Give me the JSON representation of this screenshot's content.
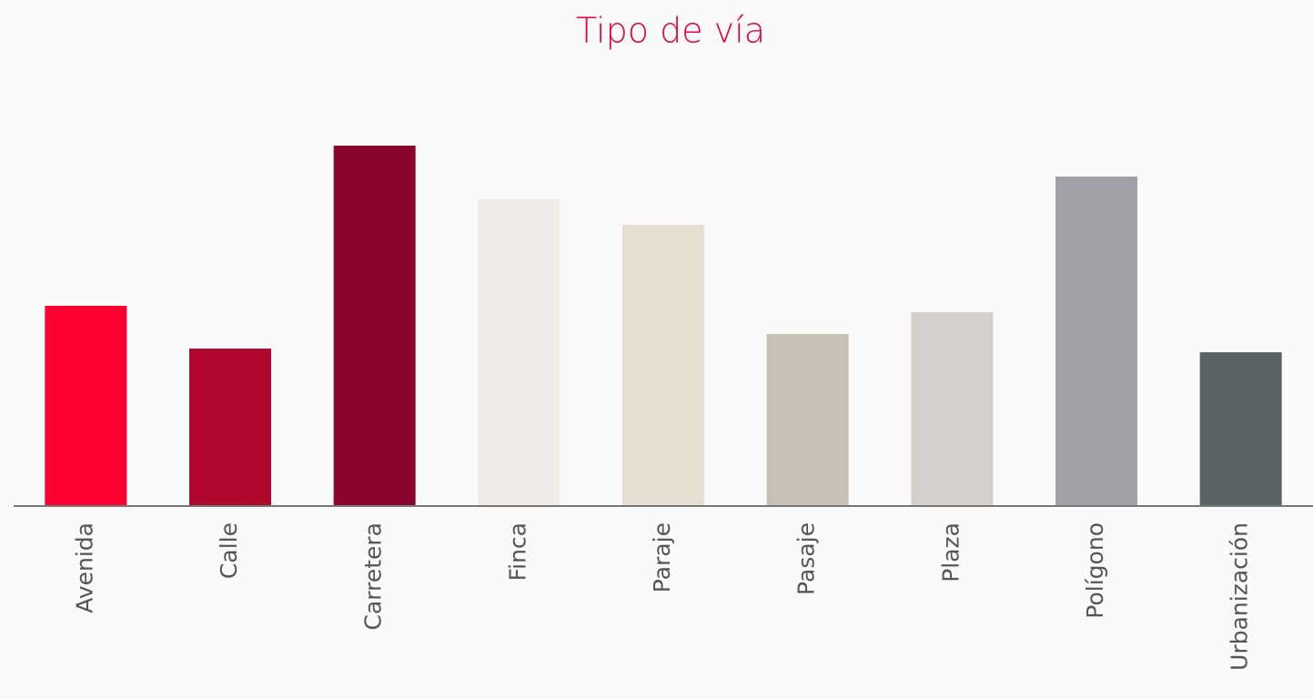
{
  "chart_data": {
    "type": "bar",
    "title": "Tipo de vía",
    "categories": [
      "Avenida",
      "Calle",
      "Carretera",
      "Finca",
      "Paraje",
      "Pasaje",
      "Plaza",
      "Polígono",
      "Urbanización"
    ],
    "values": [
      220,
      173,
      396,
      337,
      309,
      189,
      213,
      362,
      169
    ],
    "colors": [
      "#ff0030",
      "#b0092d",
      "#8b062e",
      "#f0ebe6",
      "#e7ded2",
      "#c9c0b5",
      "#d5d0cb",
      "#9fa1a6",
      "#5a6466"
    ],
    "ylim": [
      0,
      440
    ]
  }
}
